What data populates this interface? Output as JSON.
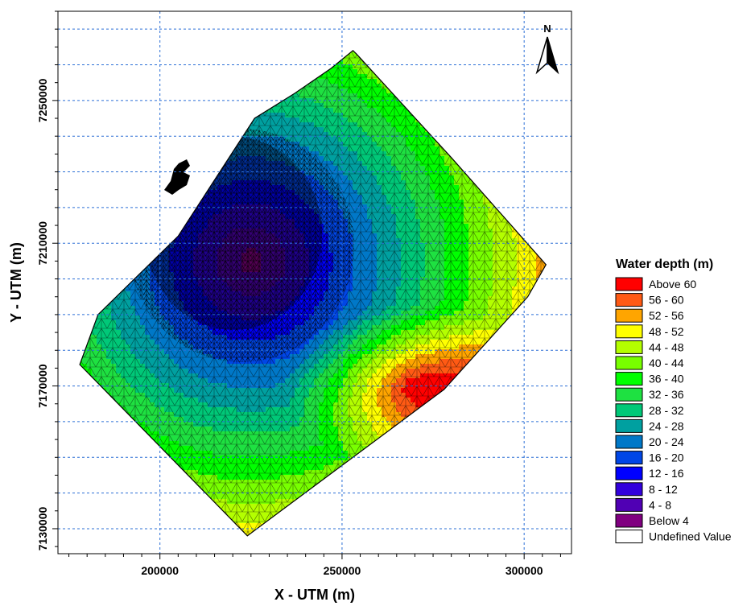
{
  "chart_data": {
    "type": "heatmap",
    "title": "",
    "xlabel": "X - UTM (m)",
    "ylabel": "Y - UTM (m)",
    "xlim": [
      172000,
      313000
    ],
    "ylim": [
      7123000,
      7275000
    ],
    "x_ticks": [
      200000,
      250000,
      300000
    ],
    "x_tick_labels": [
      "200000",
      "250000",
      "300000"
    ],
    "y_ticks": [
      7130000,
      7170000,
      7210000,
      7250000
    ],
    "y_tick_labels": [
      "7130000",
      "7170000",
      "7210000",
      "7250000"
    ],
    "grid": true,
    "grid_style": "dashed blue",
    "north_arrow": "N",
    "legend": {
      "title": "Water depth (m)",
      "placement": "right",
      "entries": [
        {
          "label": "Above 60",
          "color": "#ff0000"
        },
        {
          "label": "56 - 60",
          "color": "#ff5a14"
        },
        {
          "label": "52 - 56",
          "color": "#ffa500"
        },
        {
          "label": "48 - 52",
          "color": "#ffff00"
        },
        {
          "label": "44 - 48",
          "color": "#b4ff00"
        },
        {
          "label": "40 - 44",
          "color": "#78ff00"
        },
        {
          "label": "36 - 40",
          "color": "#00ff00"
        },
        {
          "label": "32 - 36",
          "color": "#1ee141"
        },
        {
          "label": "28 - 32",
          "color": "#00c878"
        },
        {
          "label": "24 - 28",
          "color": "#00a0a0"
        },
        {
          "label": "20 - 24",
          "color": "#0078c8"
        },
        {
          "label": "16 - 20",
          "color": "#0046e6"
        },
        {
          "label": "12 - 16",
          "color": "#0000ff"
        },
        {
          "label": "8 - 12",
          "color": "#3200dc"
        },
        {
          "label": "4 - 8",
          "color": "#5000b4"
        },
        {
          "label": "Below 4",
          "color": "#800080"
        },
        {
          "label": "Undefined Value",
          "color": "#ffffff"
        }
      ]
    },
    "domain_outline_utm": [
      [
        178000,
        7176000
      ],
      [
        183000,
        7190000
      ],
      [
        187000,
        7194000
      ],
      [
        205000,
        7212000
      ],
      [
        226000,
        7245000
      ],
      [
        237000,
        7252000
      ],
      [
        247000,
        7259000
      ],
      [
        253000,
        7264000
      ],
      [
        254000,
        7263000
      ],
      [
        280000,
        7234000
      ],
      [
        306000,
        7204000
      ],
      [
        301000,
        7195000
      ],
      [
        278000,
        7169000
      ],
      [
        224000,
        7128000
      ],
      [
        178000,
        7176000
      ]
    ],
    "depth_field": {
      "description_units": "m",
      "shallow_center_utm": [
        225000,
        7205000
      ],
      "deep_center_utm": [
        270000,
        7170000
      ],
      "min_depth": 0,
      "max_depth": 64
    }
  }
}
